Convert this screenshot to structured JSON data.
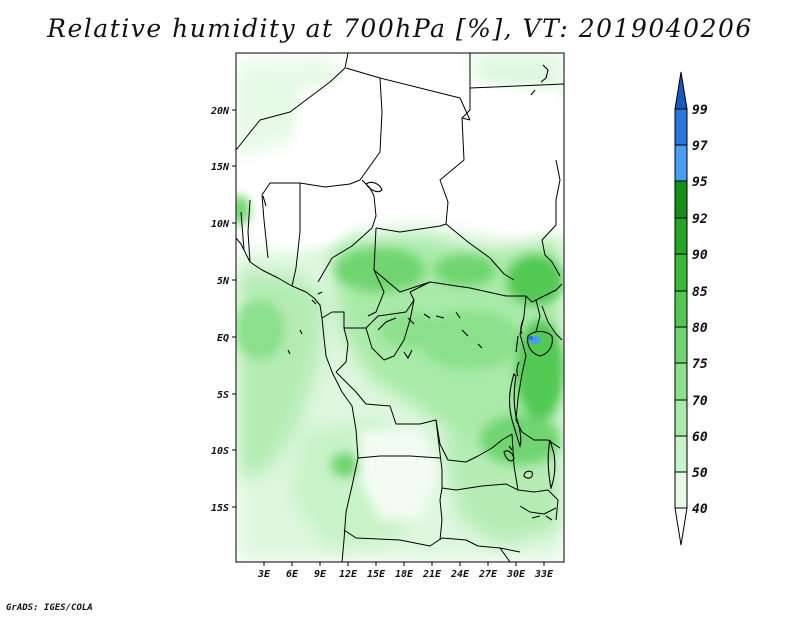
{
  "title": "Relative humidity at 700hPa [%], VT: 2019040206",
  "credit": "GrADS: IGES/COLA",
  "map": {
    "lat_ticks": [
      "20N",
      "15N",
      "10N",
      "5N",
      "EQ",
      "5S",
      "10S",
      "15S"
    ],
    "lon_ticks": [
      "3E",
      "6E",
      "9E",
      "12E",
      "15E",
      "18E",
      "21E",
      "24E",
      "27E",
      "30E",
      "33E"
    ]
  },
  "colorbar": {
    "levels": [
      "40",
      "50",
      "60",
      "70",
      "75",
      "80",
      "85",
      "90",
      "92",
      "95",
      "97",
      "99"
    ],
    "colors": [
      "#ffffff",
      "#e6fae6",
      "#c8f2c8",
      "#a8eaa8",
      "#8ce08c",
      "#6fd56f",
      "#52c852",
      "#39b839",
      "#25a525",
      "#158f15",
      "#4a9ef0",
      "#2a78dc",
      "#1858c0"
    ]
  }
}
